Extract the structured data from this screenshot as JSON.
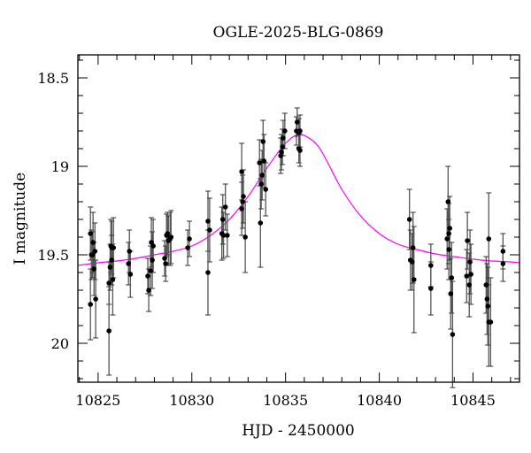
{
  "chart_data": {
    "type": "scatter",
    "title": "OGLE-2025-BLG-0869",
    "xlabel": "HJD - 2450000",
    "ylabel": "I magnitude",
    "xlim": [
      10823.92,
      10847.48
    ],
    "ylim": [
      18.37,
      20.22
    ],
    "y_inverted": true,
    "grid": false,
    "x_ticks": [
      10825,
      10830,
      10835,
      10840,
      10845
    ],
    "x_tick_labels": [
      "10825",
      "10830",
      "10835",
      "10840",
      "10845"
    ],
    "y_ticks": [
      18.5,
      19,
      19.5,
      20
    ],
    "y_tick_labels": [
      "18.5",
      "19",
      "19.5",
      "20"
    ],
    "colors": {
      "points": "#000000",
      "errorbars": "#555555",
      "model": "#ff00ff"
    },
    "points": [
      [
        10824.59,
        19.38,
        0.15
      ],
      [
        10824.59,
        19.78,
        0.2
      ],
      [
        10824.64,
        19.5,
        0.14
      ],
      [
        10824.73,
        19.43,
        0.17
      ],
      [
        10824.78,
        19.58,
        0.15
      ],
      [
        10824.83,
        19.48,
        0.16
      ],
      [
        10824.87,
        19.75,
        0.22
      ],
      [
        10824.7,
        19.5,
        0.13
      ],
      [
        10825.58,
        19.66,
        0.12
      ],
      [
        10825.58,
        19.93,
        0.25
      ],
      [
        10825.68,
        19.45,
        0.15
      ],
      [
        10825.73,
        19.46,
        0.15
      ],
      [
        10825.64,
        19.57,
        0.13
      ],
      [
        10825.78,
        19.64,
        0.2
      ],
      [
        10825.82,
        19.46,
        0.17
      ],
      [
        10825.72,
        19.53,
        0.14
      ],
      [
        10826.62,
        19.55,
        0.12
      ],
      [
        10826.67,
        19.48,
        0.12
      ],
      [
        10826.72,
        19.61,
        0.13
      ],
      [
        10827.65,
        19.62,
        0.1
      ],
      [
        10827.7,
        19.7,
        0.12
      ],
      [
        10827.8,
        19.59,
        0.14
      ],
      [
        10827.84,
        19.43,
        0.14
      ],
      [
        10827.89,
        19.53,
        0.16
      ],
      [
        10827.94,
        19.45,
        0.15
      ],
      [
        10828.55,
        19.52,
        0.1
      ],
      [
        10828.6,
        19.55,
        0.1
      ],
      [
        10828.65,
        19.39,
        0.12
      ],
      [
        10828.7,
        19.38,
        0.12
      ],
      [
        10828.75,
        19.42,
        0.14
      ],
      [
        10828.84,
        19.41,
        0.15
      ],
      [
        10828.89,
        19.4,
        0.15
      ],
      [
        10829.78,
        19.46,
        0.1
      ],
      [
        10829.87,
        19.41,
        0.1
      ],
      [
        10830.86,
        19.31,
        0.17
      ],
      [
        10830.95,
        19.36,
        0.18
      ],
      [
        10830.86,
        19.6,
        0.24
      ],
      [
        10831.6,
        19.38,
        0.15
      ],
      [
        10831.65,
        19.3,
        0.14
      ],
      [
        10831.69,
        19.39,
        0.13
      ],
      [
        10831.79,
        19.23,
        0.13
      ],
      [
        10831.89,
        19.39,
        0.12
      ],
      [
        10832.66,
        19.03,
        0.16
      ],
      [
        10832.66,
        19.24,
        0.15
      ],
      [
        10832.71,
        19.2,
        0.15
      ],
      [
        10832.75,
        19.17,
        0.15
      ],
      [
        10832.85,
        19.4,
        0.2
      ],
      [
        10833.61,
        18.98,
        0.13
      ],
      [
        10833.66,
        19.32,
        0.25
      ],
      [
        10833.7,
        19.1,
        0.14
      ],
      [
        10833.75,
        19.05,
        0.14
      ],
      [
        10833.8,
        18.86,
        0.12
      ],
      [
        10833.85,
        18.97,
        0.15
      ],
      [
        10833.94,
        19.13,
        0.15
      ],
      [
        10834.74,
        18.94,
        0.1
      ],
      [
        10834.78,
        18.92,
        0.1
      ],
      [
        10834.83,
        18.89,
        0.1
      ],
      [
        10834.87,
        18.84,
        0.1
      ],
      [
        10834.96,
        18.8,
        0.1
      ],
      [
        10835.58,
        18.8,
        0.08
      ],
      [
        10835.62,
        18.75,
        0.08
      ],
      [
        10835.71,
        18.81,
        0.08
      ],
      [
        10835.71,
        18.9,
        0.08
      ],
      [
        10835.77,
        18.8,
        0.09
      ],
      [
        10835.77,
        18.91,
        0.09
      ],
      [
        10841.61,
        19.3,
        0.17
      ],
      [
        10841.66,
        19.53,
        0.17
      ],
      [
        10841.75,
        19.54,
        0.16
      ],
      [
        10841.8,
        19.46,
        0.2
      ],
      [
        10841.85,
        19.64,
        0.3
      ],
      [
        10842.75,
        19.56,
        0.12
      ],
      [
        10842.75,
        19.69,
        0.15
      ],
      [
        10843.62,
        19.41,
        0.17
      ],
      [
        10843.67,
        19.2,
        0.2
      ],
      [
        10843.71,
        19.38,
        0.17
      ],
      [
        10843.71,
        19.47,
        0.17
      ],
      [
        10843.76,
        19.35,
        0.18
      ],
      [
        10843.81,
        19.72,
        0.2
      ],
      [
        10843.86,
        19.63,
        0.2
      ],
      [
        10843.91,
        19.95,
        0.3
      ],
      [
        10844.66,
        19.62,
        0.15
      ],
      [
        10844.7,
        19.42,
        0.16
      ],
      [
        10844.8,
        19.67,
        0.18
      ],
      [
        10844.84,
        19.54,
        0.18
      ],
      [
        10844.89,
        19.61,
        0.17
      ],
      [
        10845.7,
        19.67,
        0.16
      ],
      [
        10845.75,
        19.75,
        0.2
      ],
      [
        10845.79,
        19.79,
        0.22
      ],
      [
        10845.84,
        19.41,
        0.26
      ],
      [
        10845.84,
        19.88,
        0.25
      ],
      [
        10845.94,
        19.88,
        0.25
      ],
      [
        10846.6,
        19.48,
        0.1
      ],
      [
        10846.6,
        19.55,
        0.1
      ]
    ],
    "model_curve": {
      "t": [
        10823.92,
        10825,
        10826,
        10827,
        10828,
        10829,
        10830,
        10831,
        10832,
        10833,
        10834,
        10835,
        10835.75,
        10836.5,
        10837,
        10838,
        10839,
        10840,
        10841,
        10842,
        10843,
        10844,
        10845,
        10846,
        10847,
        10847.48
      ],
      "mag": [
        19.56,
        19.545,
        19.535,
        19.52,
        19.5,
        19.48,
        19.45,
        19.39,
        19.3,
        19.17,
        19.01,
        18.87,
        18.82,
        18.86,
        18.93,
        19.13,
        19.28,
        19.38,
        19.44,
        19.47,
        19.495,
        19.51,
        19.525,
        19.535,
        19.54,
        19.545
      ]
    }
  }
}
